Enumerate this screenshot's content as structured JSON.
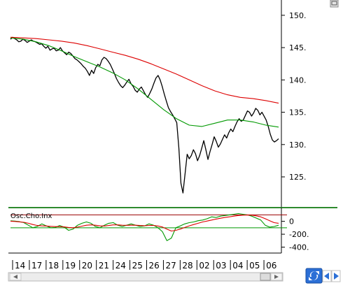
{
  "chart_data": [
    {
      "type": "line",
      "series": [
        {
          "role": "price",
          "color": "#000000",
          "values": [
            146.3,
            146.6,
            146.4,
            146.2,
            145.9,
            146.0,
            146.3,
            146.1,
            145.8,
            146.0,
            146.2,
            146.0,
            145.9,
            145.7,
            145.5,
            145.6,
            145.2,
            144.9,
            145.2,
            144.6,
            144.8,
            144.9,
            144.5,
            144.6,
            145.0,
            144.5,
            144.2,
            143.9,
            144.3,
            144.1,
            143.7,
            143.3,
            143.1,
            142.8,
            142.5,
            142.1,
            141.8,
            141.3,
            140.7,
            141.5,
            141.0,
            141.9,
            142.4,
            142.2,
            143.1,
            143.5,
            143.3,
            142.9,
            142.4,
            141.7,
            141.0,
            140.2,
            139.6,
            139.1,
            138.8,
            139.2,
            139.7,
            140.1,
            139.4,
            139.0,
            138.4,
            138.1,
            138.6,
            138.9,
            138.3,
            137.7,
            137.3,
            137.9,
            138.6,
            139.5,
            140.3,
            140.7,
            140.0,
            139.0,
            137.8,
            136.7,
            135.7,
            135.1,
            134.6,
            134.0,
            133.4,
            129.5,
            124.0,
            122.5,
            125.5,
            128.5,
            127.8,
            128.3,
            129.2,
            128.6,
            127.5,
            128.3,
            129.4,
            130.6,
            129.2,
            127.7,
            128.9,
            130.0,
            131.2,
            130.5,
            129.6,
            130.1,
            130.8,
            131.5,
            131.0,
            131.8,
            132.4,
            132.0,
            132.8,
            133.5,
            134.0,
            133.6,
            133.8,
            134.5,
            135.2,
            135.0,
            134.4,
            134.9,
            135.6,
            135.3,
            134.6,
            135.0,
            134.4,
            133.8,
            132.8,
            131.6,
            130.7,
            130.4,
            130.6,
            130.9
          ]
        },
        {
          "role": "moving-average-short",
          "color": "#009900",
          "values": [
            146.5,
            146.3,
            145.9,
            145.3,
            144.5,
            143.6,
            142.8,
            142.0,
            141.1,
            140.0,
            138.6,
            137.0,
            135.4,
            134.0,
            133.0,
            132.8,
            133.3,
            133.8,
            133.8,
            133.5,
            133.0,
            132.7
          ]
        },
        {
          "role": "moving-average-long",
          "color": "#dd0000",
          "values": [
            146.6,
            146.5,
            146.4,
            146.2,
            146.0,
            145.7,
            145.3,
            144.8,
            144.3,
            143.8,
            143.2,
            142.5,
            141.7,
            140.9,
            140.0,
            139.1,
            138.3,
            137.7,
            137.3,
            137.1,
            136.8,
            136.4
          ]
        }
      ],
      "y_ticks": [
        "150.",
        "145.",
        "140.",
        "135.",
        "130.",
        "125."
      ],
      "ylim": [
        121.0,
        151.5
      ],
      "grid": false
    },
    {
      "type": "line",
      "title": "Osc.Cho.Inx",
      "series": [
        {
          "role": "oscillator",
          "color": "#009900",
          "values": [
            8,
            3,
            -5,
            -20,
            -60,
            -100,
            -80,
            -40,
            -70,
            -100,
            -95,
            -65,
            -90,
            -140,
            -120,
            -60,
            -30,
            -10,
            -30,
            -80,
            -100,
            -60,
            -30,
            -20,
            -60,
            -80,
            -60,
            -40,
            -60,
            -80,
            -70,
            -40,
            -60,
            -100,
            -160,
            -300,
            -260,
            -100,
            -70,
            -40,
            -20,
            -10,
            10,
            20,
            40,
            70,
            60,
            80,
            90,
            100,
            110,
            120,
            110,
            100,
            80,
            50,
            20,
            -60,
            -90,
            -80,
            -60
          ]
        },
        {
          "role": "oscillator-signal",
          "color": "#dd0000",
          "values": [
            2,
            -2,
            -8,
            -15,
            -30,
            -50,
            -65,
            -70,
            -72,
            -78,
            -82,
            -82,
            -86,
            -95,
            -100,
            -90,
            -75,
            -60,
            -55,
            -60,
            -70,
            -72,
            -65,
            -55,
            -55,
            -60,
            -62,
            -60,
            -60,
            -65,
            -68,
            -64,
            -64,
            -72,
            -88,
            -120,
            -150,
            -140,
            -120,
            -95,
            -70,
            -50,
            -30,
            -10,
            5,
            20,
            35,
            48,
            60,
            70,
            80,
            90,
            96,
            98,
            95,
            85,
            70,
            40,
            10,
            -20,
            -30
          ]
        }
      ],
      "y_ticks": [
        "0",
        "-200.",
        "-400."
      ],
      "reference_levels": [
        100,
        -100
      ],
      "reference_colors": [
        "#990000",
        "#009900"
      ],
      "ylim": [
        -470,
        180
      ]
    }
  ],
  "x_axis": {
    "labels": [
      "14",
      "17",
      "18",
      "19",
      "20",
      "21",
      "24",
      "25",
      "26",
      "27",
      "28",
      "02",
      "03",
      "04",
      "05",
      "06"
    ]
  },
  "controls": {
    "refresh_icon": "refresh-arrows-icon",
    "prev_icon": "triangle-left-icon",
    "next_icon": "triangle-right-icon",
    "corner_icon": "window-corner-icon",
    "accent_color": "#2b6fd6"
  }
}
